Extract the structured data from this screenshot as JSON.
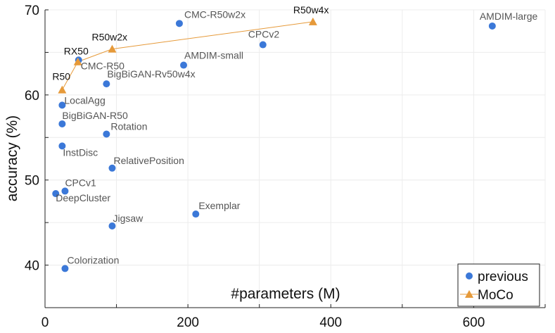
{
  "chart_data": {
    "type": "scatter",
    "xlabel": "#parameters (M)",
    "ylabel": "accuracy (%)",
    "xlim": [
      0,
      700
    ],
    "ylim": [
      35,
      70
    ],
    "xticks": [
      0,
      200,
      400,
      600
    ],
    "yticks": [
      40,
      50,
      60,
      70
    ],
    "grid": true,
    "legend_position": "bottom-right",
    "colors": {
      "previous": "#3b78d8",
      "moco": "#e69a3a"
    },
    "series": [
      {
        "name": "previous",
        "marker": "circle",
        "points": [
          {
            "label": "CMC-R50w2x",
            "x": 188,
            "y": 68.4
          },
          {
            "label": "AMDIM-large",
            "x": 626,
            "y": 68.1
          },
          {
            "label": "CPCv2",
            "x": 305,
            "y": 65.9
          },
          {
            "label": "CMC-R50",
            "x": 47,
            "y": 64.1
          },
          {
            "label": "AMDIM-small",
            "x": 194,
            "y": 63.5
          },
          {
            "label": "BigBiGAN-Rv50w4x",
            "x": 86,
            "y": 61.3
          },
          {
            "label": "LocalAgg",
            "x": 24,
            "y": 58.8
          },
          {
            "label": "BigBiGAN-R50",
            "x": 24,
            "y": 56.6
          },
          {
            "label": "Rotation",
            "x": 86,
            "y": 55.4
          },
          {
            "label": "InstDisc",
            "x": 24,
            "y": 54.0
          },
          {
            "label": "RelativePosition",
            "x": 94,
            "y": 51.4
          },
          {
            "label": "CPCv1",
            "x": 28,
            "y": 48.7
          },
          {
            "label": "DeepCluster",
            "x": 15,
            "y": 48.4
          },
          {
            "label": "Exemplar",
            "x": 211,
            "y": 46.0
          },
          {
            "label": "Jigsaw",
            "x": 94,
            "y": 44.6
          },
          {
            "label": "Colorization",
            "x": 28,
            "y": 39.6
          }
        ]
      },
      {
        "name": "MoCo",
        "marker": "triangle",
        "line": true,
        "points": [
          {
            "label": "R50",
            "x": 24,
            "y": 60.6
          },
          {
            "label": "RX50",
            "x": 46,
            "y": 63.9
          },
          {
            "label": "R50w2x",
            "x": 94,
            "y": 65.4
          },
          {
            "label": "R50w4x",
            "x": 375,
            "y": 68.6
          }
        ]
      }
    ]
  }
}
